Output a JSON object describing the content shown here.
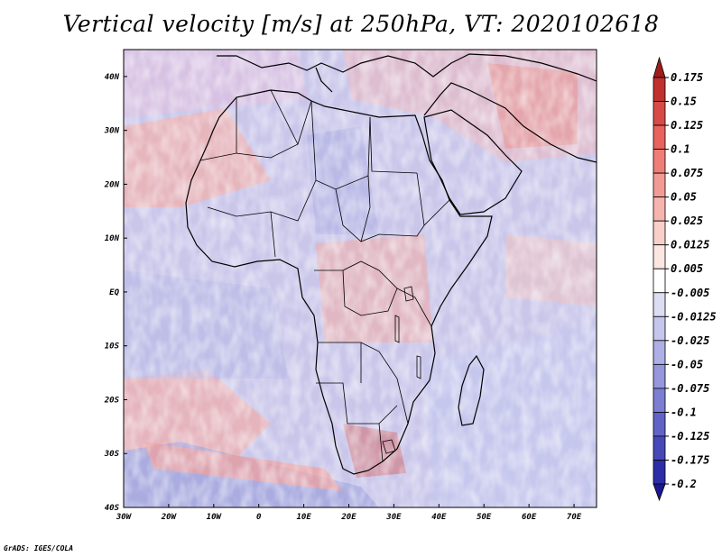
{
  "title": "Vertical velocity [m/s] at 250hPa, VT: 2020102618",
  "credit": "GrADS: IGES/COLA",
  "map": {
    "lon_range": [
      -30,
      75
    ],
    "lat_range": [
      -40,
      45
    ],
    "x_ticks": [
      "30W",
      "20W",
      "10W",
      "0",
      "10E",
      "20E",
      "30E",
      "40E",
      "50E",
      "60E",
      "70E"
    ],
    "y_ticks": [
      "40N",
      "30N",
      "20N",
      "10N",
      "EQ",
      "10S",
      "20S",
      "30S",
      "40S"
    ]
  },
  "colorbar": {
    "labels": [
      "0.175",
      "0.15",
      "0.125",
      "0.1",
      "0.075",
      "0.05",
      "0.025",
      "0.0125",
      "0.005",
      "-0.005",
      "-0.0125",
      "-0.025",
      "-0.05",
      "-0.075",
      "-0.1",
      "-0.125",
      "-0.175",
      "-0.2"
    ],
    "colors": [
      "#a01c1c",
      "#c0302e",
      "#d84a47",
      "#e8625e",
      "#ef7e78",
      "#f29b94",
      "#f5b5ae",
      "#f8cfc9",
      "#fbe6e2",
      "#ffffff",
      "#dcdcf2",
      "#c5c6ec",
      "#aeafe4",
      "#9596dc",
      "#7c7ed2",
      "#6163c6",
      "#4648b8",
      "#2d2da8",
      "#1a178f"
    ]
  }
}
